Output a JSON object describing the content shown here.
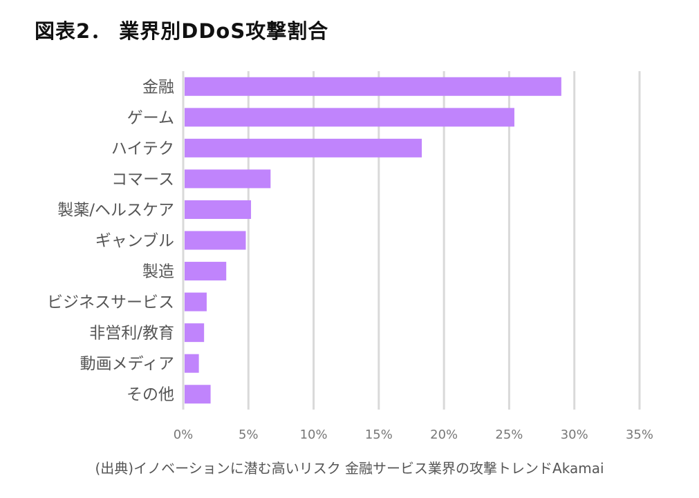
{
  "title": "図表2． 業界別DDoS攻撃割合",
  "source": "(出典)イノベーションに潜む高いリスク 金融サービス業界の攻撃トレンドAkamai",
  "chart_data": {
    "type": "bar",
    "orientation": "horizontal",
    "title": "図表2． 業界別DDoS攻撃割合",
    "categories": [
      "金融",
      "ゲーム",
      "ハイテク",
      "コマース",
      "製薬/ヘルスケア",
      "ギャンブル",
      "製造",
      "ビジネスサービス",
      "非営利/教育",
      "動画メディア",
      "その他"
    ],
    "values": [
      29.0,
      25.4,
      18.3,
      6.7,
      5.2,
      4.8,
      3.3,
      1.8,
      1.6,
      1.2,
      2.1
    ],
    "unit": "%",
    "xlim": [
      0,
      35
    ],
    "xticks": [
      "0%",
      "5%",
      "10%",
      "15%",
      "20%",
      "25%",
      "30%",
      "35%"
    ],
    "grid": "vertical",
    "bar_color": "#c084fc",
    "xlabel": "",
    "ylabel": ""
  }
}
